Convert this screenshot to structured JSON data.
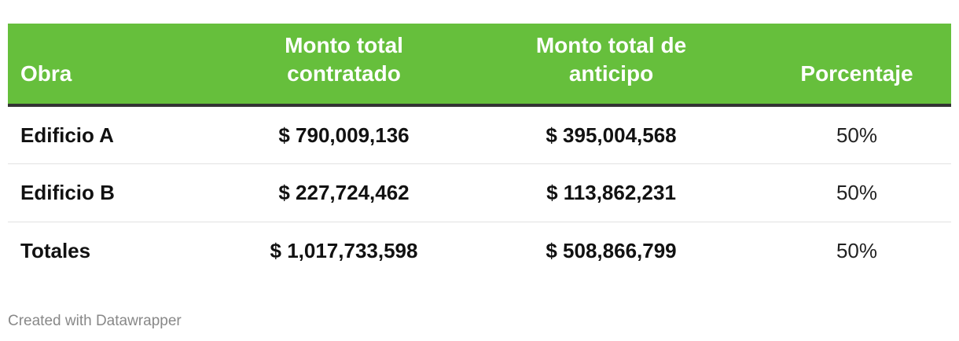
{
  "chart_data": {
    "type": "table",
    "columns": [
      "Obra",
      "Monto total contratado",
      "Monto total de anticipo",
      "Porcentaje"
    ],
    "rows": [
      {
        "obra": "Edificio A",
        "contratado": "$ 790,009,136",
        "anticipo": "$ 395,004,568",
        "porcentaje": "50%"
      },
      {
        "obra": "Edificio B",
        "contratado": "$ 227,724,462",
        "anticipo": "$ 113,862,231",
        "porcentaje": "50%"
      },
      {
        "obra": "Totales",
        "contratado": "$ 1,017,733,598",
        "anticipo": "$ 508,866,799",
        "porcentaje": "50%"
      }
    ],
    "header_color": "#66bf3c",
    "header_text_color": "#ffffff"
  },
  "footer": {
    "credit": "Created with Datawrapper"
  }
}
